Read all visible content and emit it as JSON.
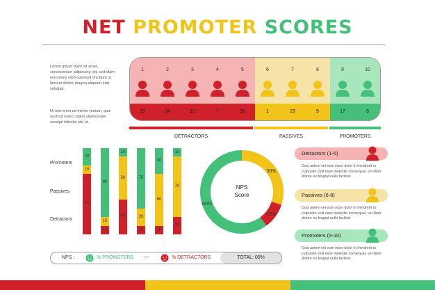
{
  "title": {
    "part1": "NET",
    "part2": "PROMOTER",
    "part3": "SCORES"
  },
  "intro": {
    "p1": "Lorem ipsum dolor sit amet, consectetuer adipiscing elit, sed diam nonummy nibh euismod tincidunt ut laoreet dolore magna aliquam erat volutpat.",
    "p2": "Ut wisi enim ad minim veniam, quis nostrud exerci tation ullamcorper suscipit lobortis nisl ut."
  },
  "scale": {
    "numbers": [
      "1",
      "2",
      "3",
      "4",
      "5",
      "6",
      "7",
      "8",
      "9",
      "10"
    ],
    "counts": [
      "13",
      "34",
      "10",
      "7",
      "58",
      "1",
      "23",
      "9",
      "17",
      "6"
    ]
  },
  "categories": {
    "detractors": "DETRACTORS",
    "passives": "PASSIVES",
    "promoters": "PROMOTERS"
  },
  "colors": {
    "red": "#d0202a",
    "yellow": "#f2c318",
    "green": "#45c07a",
    "pink": "#f5b3b3",
    "cream": "#f5e3a8",
    "mint": "#a8e6bd"
  },
  "bars": {
    "row_labels": [
      "Promoters",
      "Passives",
      "Detractors"
    ],
    "columns": [
      {
        "promoters": "20",
        "passives": "10",
        "detractors": "70"
      },
      {
        "promoters": "80",
        "passives": "10",
        "detractors": "10"
      },
      {
        "promoters": "10",
        "passives": "50",
        "detractors": "40"
      },
      {
        "promoters": "70",
        "passives": "20",
        "detractors": "10"
      },
      {
        "promoters": "30",
        "passives": "60",
        "detractors": "10"
      },
      {
        "promoters": "10",
        "passives": "70",
        "detractors": "20"
      }
    ]
  },
  "chart_data": {
    "type": "pie",
    "title": "NPS Score",
    "slices": [
      {
        "label": "30%",
        "value": 30,
        "color": "#f2c318"
      },
      {
        "label": "10%",
        "value": 10,
        "color": "#d0202a"
      },
      {
        "label": "60%",
        "value": 60,
        "color": "#45c07a"
      }
    ]
  },
  "donut": {
    "line1": "NPS",
    "line2": "Score",
    "labels": [
      "30%",
      "10%",
      "60%"
    ]
  },
  "cards": [
    {
      "title": "Detractors (1-5)",
      "text": "Duis autem vel eum iriure dolor in hendrerit in vulputate velit esse molestie consequat, vel illum dolore eu feugiat nulla facilisis"
    },
    {
      "title": "Passives (6-8)",
      "text": "Duis autem vel eum iriure dolor in hendrerit in vulputate velit esse molestie consequat, vel illum dolore eu feugiat nulla facilisis"
    },
    {
      "title": "Promoters (9-10)",
      "text": "Duis autem vel eum iriure dolor in hendrerit in vulputate velit esse molestie consequat, vel illum dolore eu feugiat nulla facilisis"
    }
  ],
  "legend": {
    "nps": "NPS :",
    "promoters": "% PROMOTERS",
    "dash": "—",
    "detractors": "% DETRACTORS",
    "total": "TOTAL: 00%"
  }
}
